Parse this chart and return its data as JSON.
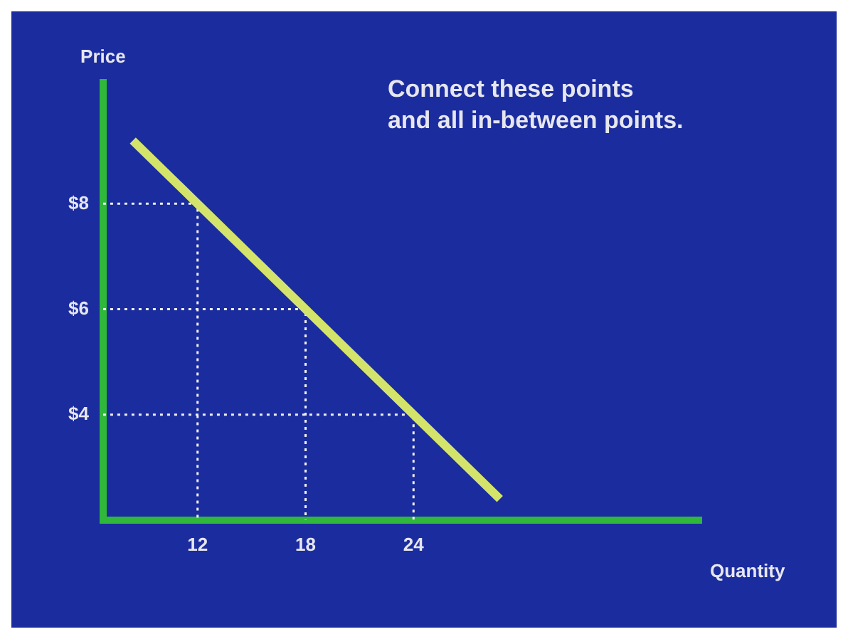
{
  "chart_data": {
    "type": "line",
    "xlabel": "Quantity",
    "ylabel": "Price",
    "annotations": [
      "Connect these points\nand all in-between points."
    ],
    "series": [
      {
        "color": "#d4e46a",
        "x": [
          8.4,
          12,
          18,
          24,
          28.8
        ],
        "values": [
          9.2,
          8,
          6,
          4,
          2.4
        ]
      },
      {
        "color": "#f0f0f0",
        "line_style": "dotted",
        "x": [
          6.75,
          12,
          12
        ],
        "values": [
          8,
          8,
          2
        ]
      },
      {
        "color": "#f0f0f0",
        "line_style": "dotted",
        "x": [
          6.75,
          18,
          18
        ],
        "values": [
          6,
          6,
          2
        ]
      },
      {
        "color": "#f0f0f0",
        "line_style": "dotted",
        "x": [
          6.75,
          24,
          24
        ],
        "values": [
          4,
          4,
          2
        ]
      }
    ],
    "xlim": [
      6.75,
      40
    ],
    "xticks": [
      12,
      18,
      24
    ],
    "ylim": [
      2,
      10.3
    ],
    "yticks": [
      {
        "value": 4,
        "label": "$4"
      },
      {
        "value": 6,
        "label": "$6"
      },
      {
        "value": 8,
        "label": "$8"
      }
    ],
    "grid": false,
    "legend": false,
    "marker": "none",
    "line_style": "solid"
  }
}
